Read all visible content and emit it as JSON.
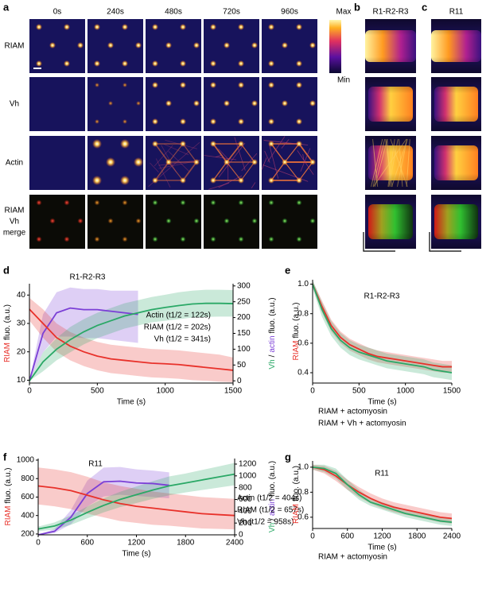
{
  "figure": {
    "panel_letters": [
      "a",
      "b",
      "c",
      "d",
      "e",
      "f",
      "g"
    ],
    "a": {
      "time_labels": [
        "0s",
        "240s",
        "480s",
        "720s",
        "960s"
      ],
      "row_labels": [
        "RIAM",
        "Vh",
        "Actin"
      ],
      "row_label_colors": [
        "#e8312a",
        "#2aa866",
        "#7b3fd6"
      ],
      "merge_labels": [
        "RIAM",
        "Vh",
        "merge"
      ],
      "merge_label_colors": [
        "#e8312a",
        "#2aa866",
        "#000000"
      ],
      "colorbar": [
        "Max",
        "Min"
      ]
    },
    "b": {
      "title": "R1-R2-R3"
    },
    "c": {
      "title": "R11"
    }
  },
  "chart_data": [
    {
      "type": "line",
      "title": "R1-R2-R3",
      "xlabel": "Time (s)",
      "ylabel": [
        "RIAM",
        "fluo. (a.u.)"
      ],
      "ylabel_colors": [
        "#e8312a",
        "#000000"
      ],
      "y2label": [
        "Vh",
        "/",
        "actin",
        "fluo. (a.u.)"
      ],
      "y2label_colors": [
        "#2aa866",
        "#000000",
        "#7b3fd6",
        "#000000"
      ],
      "legend": "inside-right",
      "xlim": [
        0,
        1500
      ],
      "xticks": [
        0,
        500,
        1000,
        1500
      ],
      "ylim": [
        9,
        44
      ],
      "yticks": [
        10,
        20,
        30,
        40
      ],
      "y2lim": [
        -7,
        307
      ],
      "y2ticks": [
        0,
        50,
        100,
        150,
        200,
        250,
        300
      ],
      "x": [
        0,
        100,
        200,
        300,
        400,
        500,
        600,
        700,
        800,
        900,
        1000,
        1100,
        1200,
        1300,
        1400,
        1500
      ],
      "series": [
        {
          "name": "Actin (t1/2 = 122s)",
          "color": "#7b3fd6",
          "axis": "y2",
          "values": [
            0,
            150,
            215,
            230,
            225,
            225,
            220,
            215,
            210,
            null,
            null,
            null,
            null,
            null,
            null,
            null
          ],
          "lower": [
            0,
            90,
            140,
            140,
            135,
            135,
            130,
            125,
            120,
            null,
            null,
            null,
            null,
            null,
            null,
            null
          ],
          "upper": [
            0,
            210,
            280,
            295,
            290,
            290,
            285,
            285,
            285,
            null,
            null,
            null,
            null,
            null,
            null,
            null
          ]
        },
        {
          "name": "RIAM (t1/2 = 202s)",
          "color": "#e8312a",
          "values": [
            35,
            30,
            25,
            22,
            20,
            18.5,
            17.5,
            17,
            16.5,
            16,
            15.8,
            15.5,
            15,
            14.5,
            14,
            13.5
          ],
          "lower": [
            31,
            25,
            20,
            17,
            15,
            13.5,
            12.5,
            12,
            11.5,
            11,
            10.8,
            10.5,
            10,
            9.8,
            9.5,
            9.3
          ],
          "upper": [
            39,
            35,
            30,
            27,
            25,
            23.5,
            22.5,
            22,
            21.5,
            21,
            20.8,
            20.5,
            20,
            19.5,
            19,
            18
          ]
        },
        {
          "name": "Vh (t1/2 = 341s)",
          "color": "#2aa866",
          "axis": "y2",
          "values": [
            0,
            60,
            100,
            130,
            155,
            175,
            190,
            205,
            215,
            225,
            232,
            238,
            243,
            245,
            245,
            244
          ],
          "lower": [
            0,
            30,
            65,
            90,
            115,
            135,
            150,
            165,
            175,
            185,
            190,
            195,
            200,
            202,
            203,
            203
          ],
          "upper": [
            0,
            90,
            135,
            170,
            195,
            215,
            230,
            245,
            255,
            265,
            272,
            280,
            285,
            288,
            288,
            287
          ]
        }
      ]
    },
    {
      "type": "line",
      "title": "R1-R2-R3",
      "xlabel": "Time (s)",
      "ylabel": [
        "RIAM",
        "fluo. (a.u.)"
      ],
      "ylabel_colors": [
        "#e8312a",
        "#000000"
      ],
      "legend": "below",
      "xlim": [
        0,
        1500
      ],
      "xticks": [
        0,
        500,
        1000,
        1500
      ],
      "ylim": [
        0.33,
        1.03
      ],
      "yticks": [
        0.4,
        0.6,
        0.8,
        {
          "value": 1,
          "label": "1.0"
        }
      ],
      "x": [
        0,
        100,
        200,
        300,
        400,
        500,
        600,
        700,
        800,
        900,
        1000,
        1100,
        1200,
        1300,
        1400,
        1500
      ],
      "series": [
        {
          "name": "RIAM + actomyosin",
          "color": "#e8312a",
          "values": [
            1.0,
            0.85,
            0.72,
            0.64,
            0.59,
            0.56,
            0.53,
            0.51,
            0.5,
            0.49,
            0.48,
            0.47,
            0.46,
            0.45,
            0.44,
            0.44
          ],
          "lower": [
            0.98,
            0.81,
            0.68,
            0.6,
            0.55,
            0.52,
            0.49,
            0.47,
            0.46,
            0.45,
            0.44,
            0.43,
            0.42,
            0.41,
            0.4,
            0.4
          ],
          "upper": [
            1.02,
            0.89,
            0.76,
            0.68,
            0.63,
            0.6,
            0.57,
            0.55,
            0.54,
            0.53,
            0.52,
            0.51,
            0.5,
            0.49,
            0.48,
            0.48
          ]
        },
        {
          "name": "RIAM + Vh + actomyosin",
          "color": "#2aa866",
          "values": [
            1.0,
            0.83,
            0.7,
            0.62,
            0.57,
            0.54,
            0.52,
            0.5,
            0.48,
            0.47,
            0.46,
            0.45,
            0.44,
            0.42,
            0.41,
            0.4
          ],
          "lower": [
            0.97,
            0.78,
            0.65,
            0.57,
            0.52,
            0.49,
            0.47,
            0.45,
            0.43,
            0.42,
            0.41,
            0.4,
            0.39,
            0.37,
            0.36,
            0.35
          ],
          "upper": [
            1.03,
            0.88,
            0.75,
            0.67,
            0.62,
            0.59,
            0.57,
            0.55,
            0.53,
            0.52,
            0.51,
            0.5,
            0.49,
            0.47,
            0.46,
            0.45
          ]
        }
      ]
    },
    {
      "type": "line",
      "title": "R11",
      "xlabel": "Time (s)",
      "ylabel": [
        "RIAM",
        "fluo. (a.u.)"
      ],
      "ylabel_colors": [
        "#e8312a",
        "#000000"
      ],
      "y2label": [
        "Vh",
        "/",
        "actin",
        "fluo. (a.u.)"
      ],
      "y2label_colors": [
        "#2aa866",
        "#000000",
        "#7b3fd6",
        "#000000"
      ],
      "legend": "outside-right",
      "xlim": [
        0,
        2400
      ],
      "xticks": [
        0,
        600,
        1200,
        1800,
        2400
      ],
      "ylim": [
        191,
        1017
      ],
      "yticks": [
        200,
        400,
        600,
        800,
        1000
      ],
      "y2lim": [
        0,
        1294
      ],
      "y2ticks": [
        0,
        200,
        400,
        600,
        800,
        1000,
        1200
      ],
      "x": [
        0,
        200,
        400,
        600,
        800,
        1000,
        1200,
        1400,
        1600,
        1800,
        2000,
        2200,
        2400
      ],
      "series": [
        {
          "name": "Actin (t1/2 = 404s)",
          "color": "#7b3fd6",
          "axis": "y2",
          "values": [
            0,
            60,
            300,
            700,
            900,
            910,
            880,
            870,
            840,
            null,
            null,
            null,
            null
          ],
          "lower": [
            0,
            30,
            180,
            480,
            650,
            680,
            660,
            640,
            620,
            null,
            null,
            null,
            null
          ],
          "upper": [
            0,
            100,
            420,
            920,
            1140,
            1150,
            1110,
            1090,
            1060,
            null,
            null,
            null,
            null
          ]
        },
        {
          "name": "RIAM (t1/2 = 657s)",
          "color": "#e8312a",
          "values": [
            720,
            700,
            670,
            620,
            570,
            530,
            500,
            480,
            460,
            440,
            420,
            410,
            400
          ],
          "lower": [
            520,
            500,
            470,
            420,
            380,
            340,
            320,
            300,
            290,
            275,
            260,
            255,
            250
          ],
          "upper": [
            920,
            900,
            870,
            820,
            760,
            720,
            690,
            660,
            640,
            620,
            600,
            590,
            580
          ]
        },
        {
          "name": "Vh (t1/2 = 958s)",
          "color": "#2aa866",
          "axis": "y2",
          "values": [
            100,
            150,
            250,
            380,
            500,
            600,
            680,
            760,
            830,
            880,
            930,
            980,
            1030
          ],
          "lower": [
            60,
            90,
            170,
            280,
            380,
            470,
            540,
            610,
            670,
            720,
            760,
            800,
            840
          ],
          "upper": [
            140,
            210,
            330,
            480,
            620,
            730,
            820,
            910,
            990,
            1040,
            1100,
            1160,
            1220
          ]
        }
      ]
    },
    {
      "type": "line",
      "title": "R11",
      "xlabel": "Time (s)",
      "ylabel": [
        "RIAM",
        "fluo. (a.u.)"
      ],
      "ylabel_colors": [
        "#e8312a",
        "#000000"
      ],
      "legend": "below",
      "xlim": [
        0,
        2400
      ],
      "xticks": [
        0,
        600,
        1200,
        1800,
        2400
      ],
      "ylim": [
        0.51,
        1.05
      ],
      "yticks": [
        0.6,
        0.8,
        {
          "value": 1,
          "label": "1.0"
        }
      ],
      "x": [
        0,
        200,
        400,
        600,
        800,
        1000,
        1200,
        1400,
        1600,
        1800,
        2000,
        2200,
        2400
      ],
      "series": [
        {
          "name": "RIAM + actomyosin",
          "color": "#e8312a",
          "values": [
            1.0,
            0.98,
            0.93,
            0.86,
            0.8,
            0.75,
            0.71,
            0.68,
            0.66,
            0.64,
            0.62,
            0.6,
            0.59
          ],
          "lower": [
            0.98,
            0.95,
            0.89,
            0.82,
            0.76,
            0.71,
            0.67,
            0.64,
            0.62,
            0.6,
            0.58,
            0.56,
            0.55
          ],
          "upper": [
            1.02,
            1.01,
            0.97,
            0.9,
            0.84,
            0.79,
            0.75,
            0.72,
            0.7,
            0.68,
            0.66,
            0.64,
            0.63
          ]
        },
        {
          "color": "#2aa866",
          "values": [
            1.0,
            0.99,
            0.95,
            0.86,
            0.78,
            0.72,
            0.69,
            0.66,
            0.63,
            0.61,
            0.59,
            0.57,
            0.56
          ],
          "lower": [
            0.98,
            0.96,
            0.91,
            0.82,
            0.74,
            0.69,
            0.66,
            0.63,
            0.6,
            0.58,
            0.56,
            0.54,
            0.53
          ],
          "upper": [
            1.02,
            1.02,
            0.99,
            0.9,
            0.82,
            0.75,
            0.72,
            0.69,
            0.66,
            0.64,
            0.62,
            0.6,
            0.59
          ]
        }
      ]
    }
  ]
}
